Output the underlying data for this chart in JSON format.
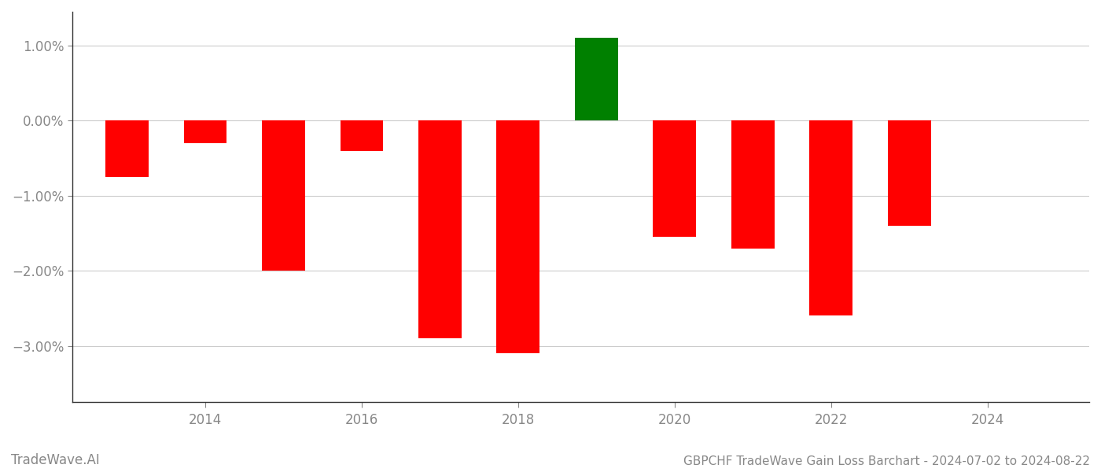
{
  "years": [
    2013,
    2014,
    2015,
    2016,
    2017,
    2018,
    2019,
    2020,
    2021,
    2022,
    2023,
    2024
  ],
  "values": [
    -0.0075,
    -0.003,
    -0.02,
    -0.004,
    -0.029,
    -0.031,
    0.011,
    -0.0155,
    -0.017,
    -0.026,
    -0.014,
    -0.0
  ],
  "bar_colors": [
    "#ff0000",
    "#ff0000",
    "#ff0000",
    "#ff0000",
    "#ff0000",
    "#ff0000",
    "#008000",
    "#ff0000",
    "#ff0000",
    "#ff0000",
    "#ff0000",
    "#ff0000"
  ],
  "title": "GBPCHF TradeWave Gain Loss Barchart - 2024-07-02 to 2024-08-22",
  "watermark": "TradeWave.AI",
  "ylim": [
    -0.0375,
    0.0145
  ],
  "yticks": [
    -0.03,
    -0.02,
    -0.01,
    0.0,
    0.01
  ],
  "ytick_labels": [
    "−3.00%",
    "−2.00%",
    "−1.00%",
    "0.00%",
    "1.00%"
  ],
  "background_color": "#ffffff",
  "grid_color": "#cccccc",
  "bar_width": 0.55,
  "title_fontsize": 11,
  "watermark_fontsize": 12,
  "tick_fontsize": 12,
  "axis_label_color": "#888888",
  "xlim": [
    2012.3,
    2025.3
  ],
  "xtick_years": [
    2014,
    2016,
    2018,
    2020,
    2022,
    2024
  ]
}
